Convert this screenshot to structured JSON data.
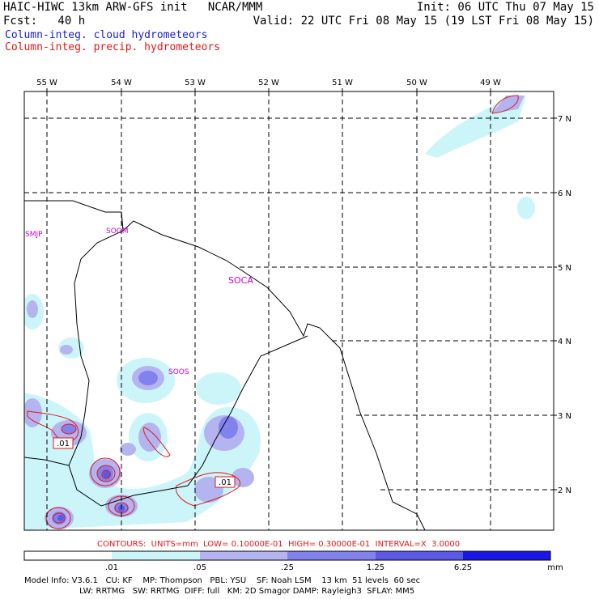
{
  "header": {
    "title_left": "HAIC-HIWC 13km ARW-GFS init   NCAR/MMM",
    "forecast": "Fcst:   40 h",
    "init": "Init: 06 UTC Thu 07 May 15",
    "valid": "Valid: 22 UTC Fri 08 May 15 (19 LST Fri 08 May 15)",
    "field_cloud": "Column-integ. cloud hydrometeors",
    "field_precip": "Column-integ. precip. hydrometeors"
  },
  "colors": {
    "cloud_text": "#1c1ccf",
    "precip_text": "#e01818",
    "station_text": "#cc00cc",
    "scale": [
      "#ffffff",
      "#ccf5fa",
      "#b4b4f0",
      "#8282ee",
      "#5a5ae6",
      "#1818e6"
    ]
  },
  "map": {
    "lon_labels": [
      "55 W",
      "54 W",
      "53 W",
      "52 W",
      "51 W",
      "50 W",
      "49 W"
    ],
    "lat_labels": [
      "7 N",
      "6 N",
      "5 N",
      "4 N",
      "3 N",
      "2 N"
    ],
    "stations": [
      "SMJP",
      "SOGM",
      "SOCA",
      "SOOS"
    ],
    "contour_labels": [
      ".01",
      ".01"
    ]
  },
  "contours_line": "CONTOURS:  UNITS=mm  LOW= 0.10000E-01  HIGH= 0.30000E-01  INTERVAL=X  3.0000",
  "scale": {
    "ticks": [
      ".01",
      ".05",
      ".25",
      "1.25",
      "6.25"
    ],
    "units": "mm"
  },
  "footer": {
    "line1": "Model Info: V3.6.1   CU: KF    MP: Thompson   PBL: YSU    SF: Noah LSM    13 km  51 levels  60 sec",
    "line2": "LW: RRTMG   SW: RRTMG  DIFF: full   KM: 2D Smagor DAMP: Rayleigh3  SFLAY: MM5"
  }
}
